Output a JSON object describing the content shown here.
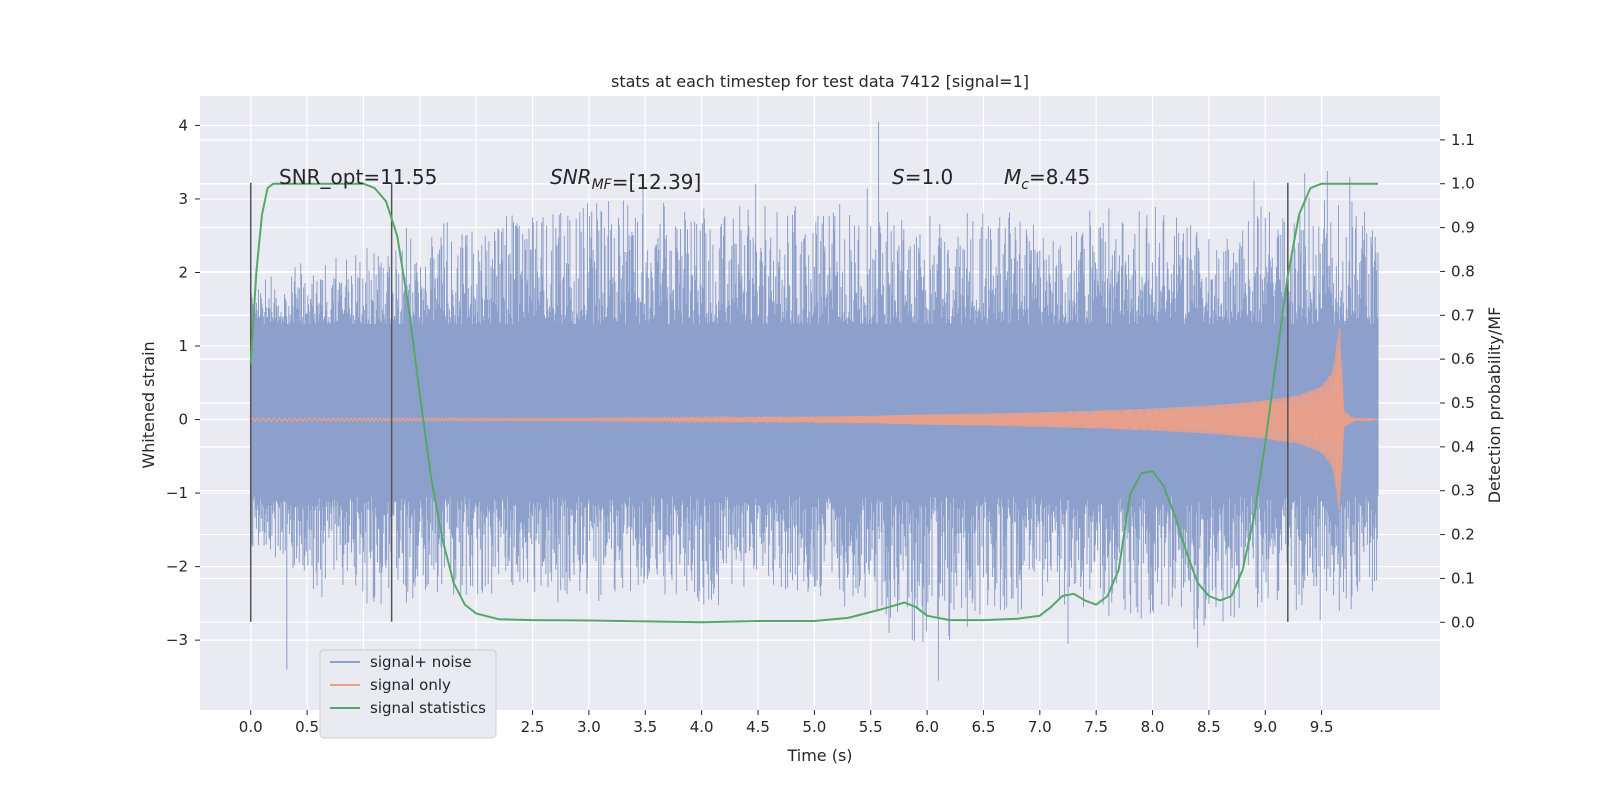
{
  "chart_data": {
    "type": "line",
    "title": "stats at each timestep for test data 7412 [signal=1]",
    "xlabel": "Time (s)",
    "ylabel": "Whitened strain",
    "y2label": "Detection probability/MF",
    "xlim": [
      -0.45,
      10.55
    ],
    "ylim": [
      -3.95,
      4.4
    ],
    "y2lim": [
      -0.2,
      1.2
    ],
    "x_ticks": [
      "0.0",
      "0.5",
      "1.0",
      "1.5",
      "2.0",
      "2.5",
      "3.0",
      "3.5",
      "4.0",
      "4.5",
      "5.0",
      "5.5",
      "6.0",
      "6.5",
      "7.0",
      "7.5",
      "8.0",
      "8.5",
      "9.0",
      "9.5"
    ],
    "y_ticks": [
      "−3",
      "−2",
      "−1",
      "0",
      "1",
      "2",
      "3",
      "4"
    ],
    "y2_ticks": [
      "0.0",
      "0.1",
      "0.2",
      "0.3",
      "0.4",
      "0.5",
      "0.6",
      "0.7",
      "0.8",
      "0.9",
      "1.0",
      "1.1"
    ],
    "grid": true,
    "legend_position": "lower-left",
    "annotations": {
      "snr_opt": "SNR_opt=11.55",
      "snr_mf_main": "SNR",
      "snr_mf_sub": "MF",
      "snr_mf_rest": "=[12.39]",
      "s_main": "S",
      "s_rest": "=1.0",
      "mc_main": "M",
      "mc_sub": "c",
      "mc_rest": "=8.45"
    },
    "vertical_lines_x": [
      0.0,
      1.25,
      9.2
    ],
    "vertical_lines_yrange": [
      -2.75,
      3.22
    ],
    "series": [
      {
        "name": "signal+ noise",
        "color": "#8da0cb",
        "envelope_x": [
          0.0,
          0.5,
          1.0,
          1.5,
          2.0,
          2.5,
          3.0,
          3.5,
          4.0,
          4.5,
          5.0,
          5.5,
          6.0,
          6.5,
          7.0,
          7.5,
          8.0,
          8.5,
          9.0,
          9.5,
          10.0
        ],
        "envelope_high": [
          1.7,
          2.0,
          2.2,
          2.5,
          2.6,
          2.7,
          2.8,
          2.9,
          2.8,
          2.9,
          2.7,
          3.0,
          2.6,
          2.8,
          2.6,
          2.7,
          2.8,
          2.5,
          2.8,
          2.9,
          2.7
        ],
        "envelope_low": [
          -1.6,
          -2.2,
          -2.4,
          -2.3,
          -2.3,
          -2.2,
          -2.4,
          -2.3,
          -2.5,
          -2.2,
          -2.3,
          -2.5,
          -3.2,
          -2.6,
          -2.5,
          -2.5,
          -2.6,
          -2.8,
          -2.5,
          -2.6,
          -2.3
        ],
        "spikes": [
          [
            0.32,
            -3.4
          ],
          [
            3.48,
            3.25
          ],
          [
            5.57,
            4.05
          ],
          [
            6.1,
            -3.55
          ],
          [
            6.2,
            -3.0
          ],
          [
            7.25,
            -3.05
          ],
          [
            8.4,
            -3.1
          ],
          [
            9.75,
            3.3
          ],
          [
            9.55,
            3.38
          ],
          [
            9.35,
            3.35
          ],
          [
            4.48,
            3.2
          ],
          [
            2.5,
            2.75
          ],
          [
            8.9,
            3.25
          ]
        ]
      },
      {
        "name": "signal only",
        "color": "#e8a08c",
        "amplitude_x": [
          0.0,
          1.0,
          2.0,
          3.0,
          4.0,
          5.0,
          5.5,
          6.0,
          6.5,
          7.0,
          7.5,
          8.0,
          8.5,
          9.0,
          9.3,
          9.5,
          9.6,
          9.66,
          9.7,
          9.8,
          10.0
        ],
        "amplitude": [
          0.02,
          0.02,
          0.02,
          0.02,
          0.03,
          0.04,
          0.05,
          0.07,
          0.08,
          0.1,
          0.12,
          0.15,
          0.19,
          0.26,
          0.33,
          0.45,
          0.65,
          1.3,
          0.1,
          0.02,
          0.0
        ]
      },
      {
        "name": "signal statistics",
        "color": "#55a868",
        "axis": "right",
        "x": [
          0.0,
          0.05,
          0.1,
          0.15,
          0.2,
          0.3,
          0.5,
          0.8,
          1.0,
          1.1,
          1.2,
          1.3,
          1.4,
          1.5,
          1.6,
          1.7,
          1.8,
          1.9,
          2.0,
          2.2,
          2.5,
          3.0,
          3.5,
          4.0,
          4.5,
          5.0,
          5.3,
          5.6,
          5.8,
          5.9,
          6.0,
          6.2,
          6.5,
          6.8,
          7.0,
          7.1,
          7.2,
          7.3,
          7.4,
          7.5,
          7.6,
          7.7,
          7.8,
          7.9,
          8.0,
          8.1,
          8.2,
          8.3,
          8.4,
          8.5,
          8.6,
          8.7,
          8.8,
          8.9,
          9.0,
          9.1,
          9.2,
          9.3,
          9.4,
          9.5,
          9.6,
          9.8,
          10.0
        ],
        "values": [
          0.59,
          0.8,
          0.93,
          0.99,
          1.0,
          1.0,
          1.0,
          1.0,
          1.0,
          0.99,
          0.96,
          0.88,
          0.72,
          0.52,
          0.33,
          0.19,
          0.09,
          0.04,
          0.02,
          0.007,
          0.005,
          0.004,
          0.002,
          0.0,
          0.003,
          0.003,
          0.01,
          0.03,
          0.045,
          0.035,
          0.015,
          0.005,
          0.005,
          0.008,
          0.015,
          0.035,
          0.06,
          0.065,
          0.05,
          0.04,
          0.06,
          0.12,
          0.29,
          0.34,
          0.345,
          0.31,
          0.24,
          0.16,
          0.09,
          0.06,
          0.05,
          0.06,
          0.12,
          0.24,
          0.41,
          0.6,
          0.79,
          0.93,
          0.99,
          1.0,
          1.0,
          1.0,
          1.0
        ]
      }
    ]
  }
}
